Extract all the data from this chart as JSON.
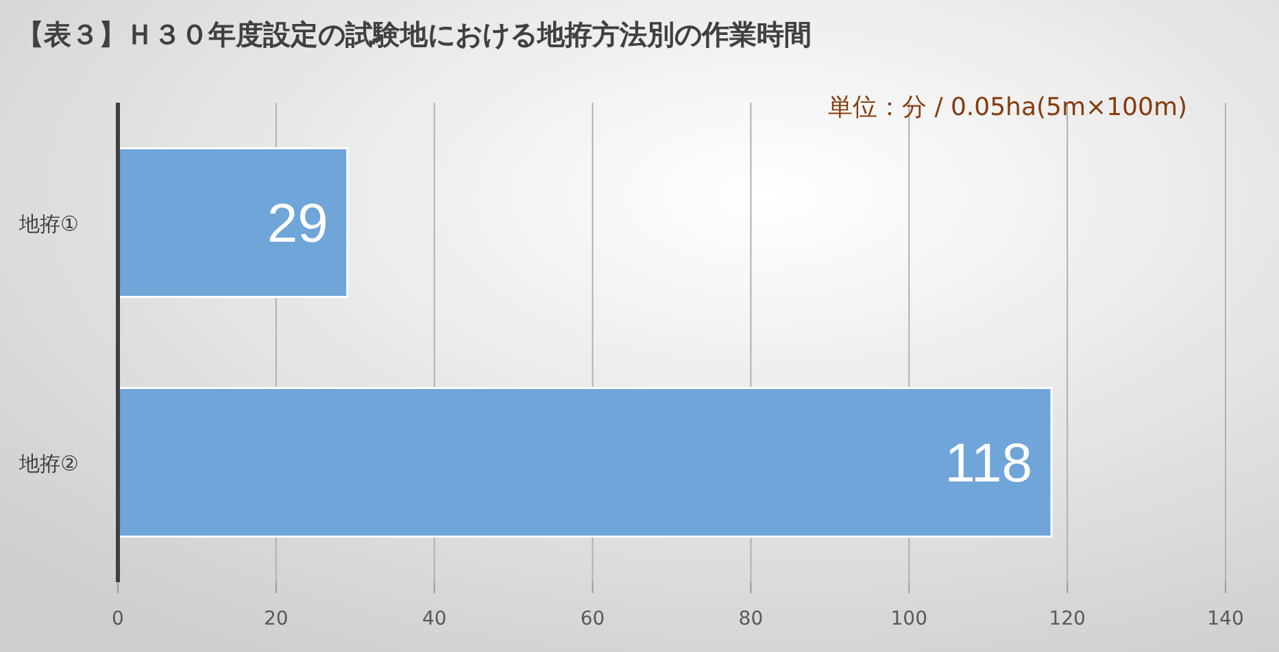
{
  "chart_data": {
    "type": "bar",
    "orientation": "horizontal",
    "title": "【表３】Ｈ３０年度設定の試験地における地拵方法別の作業時間",
    "annotations": [
      "単位：分 / 0.05ha(5m×100m)"
    ],
    "categories": [
      "地拵①",
      "地拵②"
    ],
    "values": [
      29,
      118
    ],
    "color": "#6fa5d8",
    "xlim": [
      0,
      140
    ],
    "xticks": [
      0,
      20,
      40,
      60,
      80,
      100,
      120,
      140
    ],
    "grid": "x",
    "data_labels": true
  }
}
